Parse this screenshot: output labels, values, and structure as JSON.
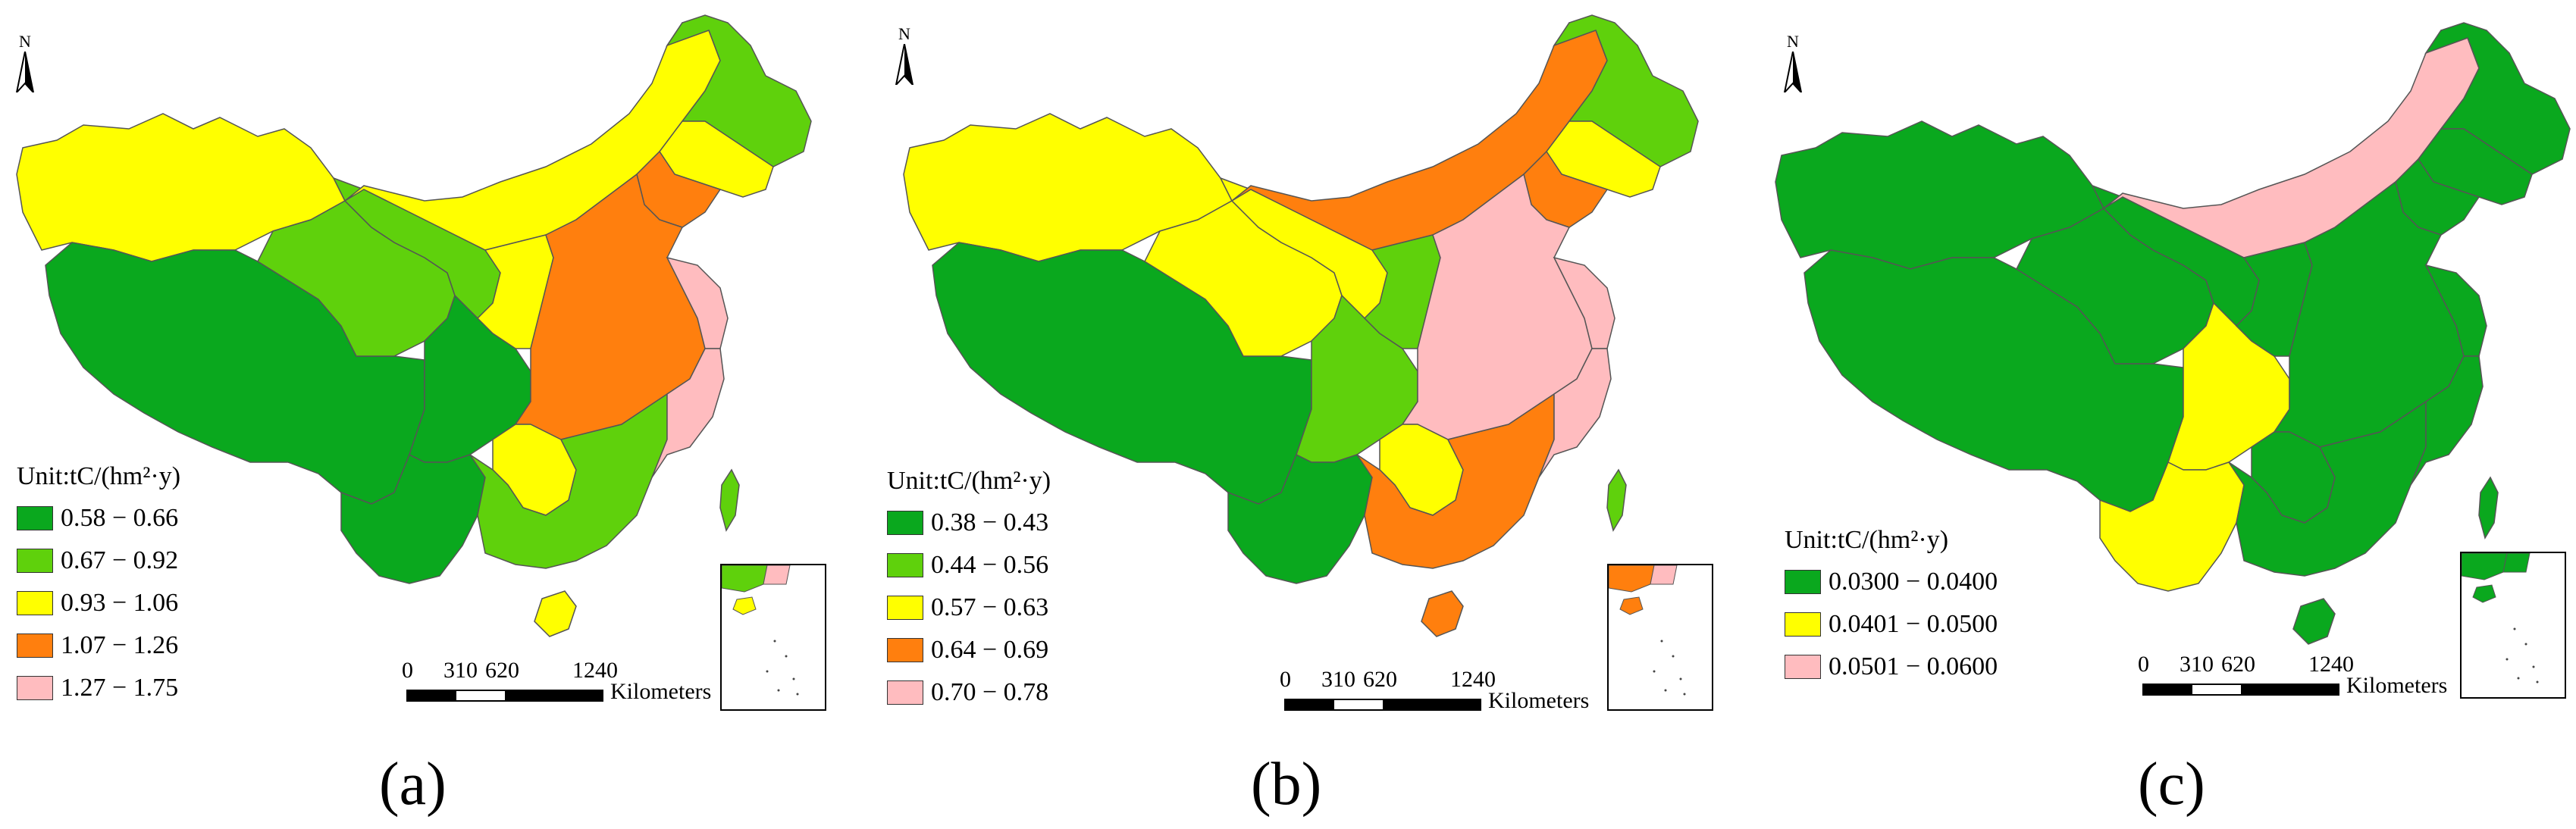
{
  "colors": {
    "dark_green": "#0aa81e",
    "light_green": "#5fd10c",
    "yellow": "#ffff00",
    "orange": "#ff7f0e",
    "pink": "#ffbcbf"
  },
  "north_label": "N",
  "unit_label": "Unit:tC/(hm²·y)",
  "scale": {
    "ticks": [
      "0",
      "310",
      "620",
      "1240"
    ],
    "unit": "Kilometers"
  },
  "panels": [
    {
      "caption": "(a)",
      "legend": [
        {
          "label": "0.58 − 0.66",
          "color": "#0aa81e"
        },
        {
          "label": "0.67 − 0.92",
          "color": "#5fd10c"
        },
        {
          "label": "0.93 − 1.06",
          "color": "#ffff00"
        },
        {
          "label": "1.07 − 1.26",
          "color": "#ff7f0e"
        },
        {
          "label": "1.27 − 1.75",
          "color": "#ffbcbf"
        }
      ],
      "regions": {
        "xinjiang": "yellow",
        "xizang": "dark_green",
        "qinghai": "light_green",
        "gansu": "light_green",
        "neimenggu": "yellow",
        "heilongjiang": "light_green",
        "jilin": "yellow",
        "liaoning": "orange",
        "sichuan": "dark_green",
        "yunnan": "dark_green",
        "shaanxi": "yellow",
        "east": "orange",
        "jiangsu": "pink",
        "south": "light_green",
        "guizhou": "yellow",
        "fujian": "pink",
        "hainan": "yellow",
        "taiwan": "light_green"
      }
    },
    {
      "caption": "(b)",
      "legend": [
        {
          "label": "0.38 − 0.43",
          "color": "#0aa81e"
        },
        {
          "label": "0.44 − 0.56",
          "color": "#5fd10c"
        },
        {
          "label": "0.57 − 0.63",
          "color": "#ffff00"
        },
        {
          "label": "0.64 − 0.69",
          "color": "#ff7f0e"
        },
        {
          "label": "0.70 − 0.78",
          "color": "#ffbcbf"
        }
      ],
      "regions": {
        "xinjiang": "yellow",
        "xizang": "dark_green",
        "qinghai": "yellow",
        "gansu": "yellow",
        "neimenggu": "orange",
        "heilongjiang": "light_green",
        "jilin": "yellow",
        "liaoning": "orange",
        "sichuan": "light_green",
        "yunnan": "dark_green",
        "shaanxi": "light_green",
        "east": "pink",
        "jiangsu": "pink",
        "south": "orange",
        "guizhou": "yellow",
        "fujian": "pink",
        "hainan": "orange",
        "taiwan": "light_green"
      }
    },
    {
      "caption": "(c)",
      "legend": [
        {
          "label": "0.0300 −  0.0400",
          "color": "#0aa81e"
        },
        {
          "label": "0.0401 − 0.0500",
          "color": "#ffff00"
        },
        {
          "label": "0.0501 − 0.0600",
          "color": "#ffbcbf"
        }
      ],
      "regions": {
        "xinjiang": "dark_green",
        "xizang": "dark_green",
        "qinghai": "dark_green",
        "gansu": "dark_green",
        "neimenggu": "pink",
        "heilongjiang": "dark_green",
        "jilin": "dark_green",
        "liaoning": "dark_green",
        "sichuan": "yellow",
        "yunnan": "yellow",
        "shaanxi": "dark_green",
        "east": "dark_green",
        "jiangsu": "dark_green",
        "south": "dark_green",
        "guizhou": "dark_green",
        "fujian": "dark_green",
        "hainan": "dark_green",
        "taiwan": "dark_green"
      }
    }
  ]
}
